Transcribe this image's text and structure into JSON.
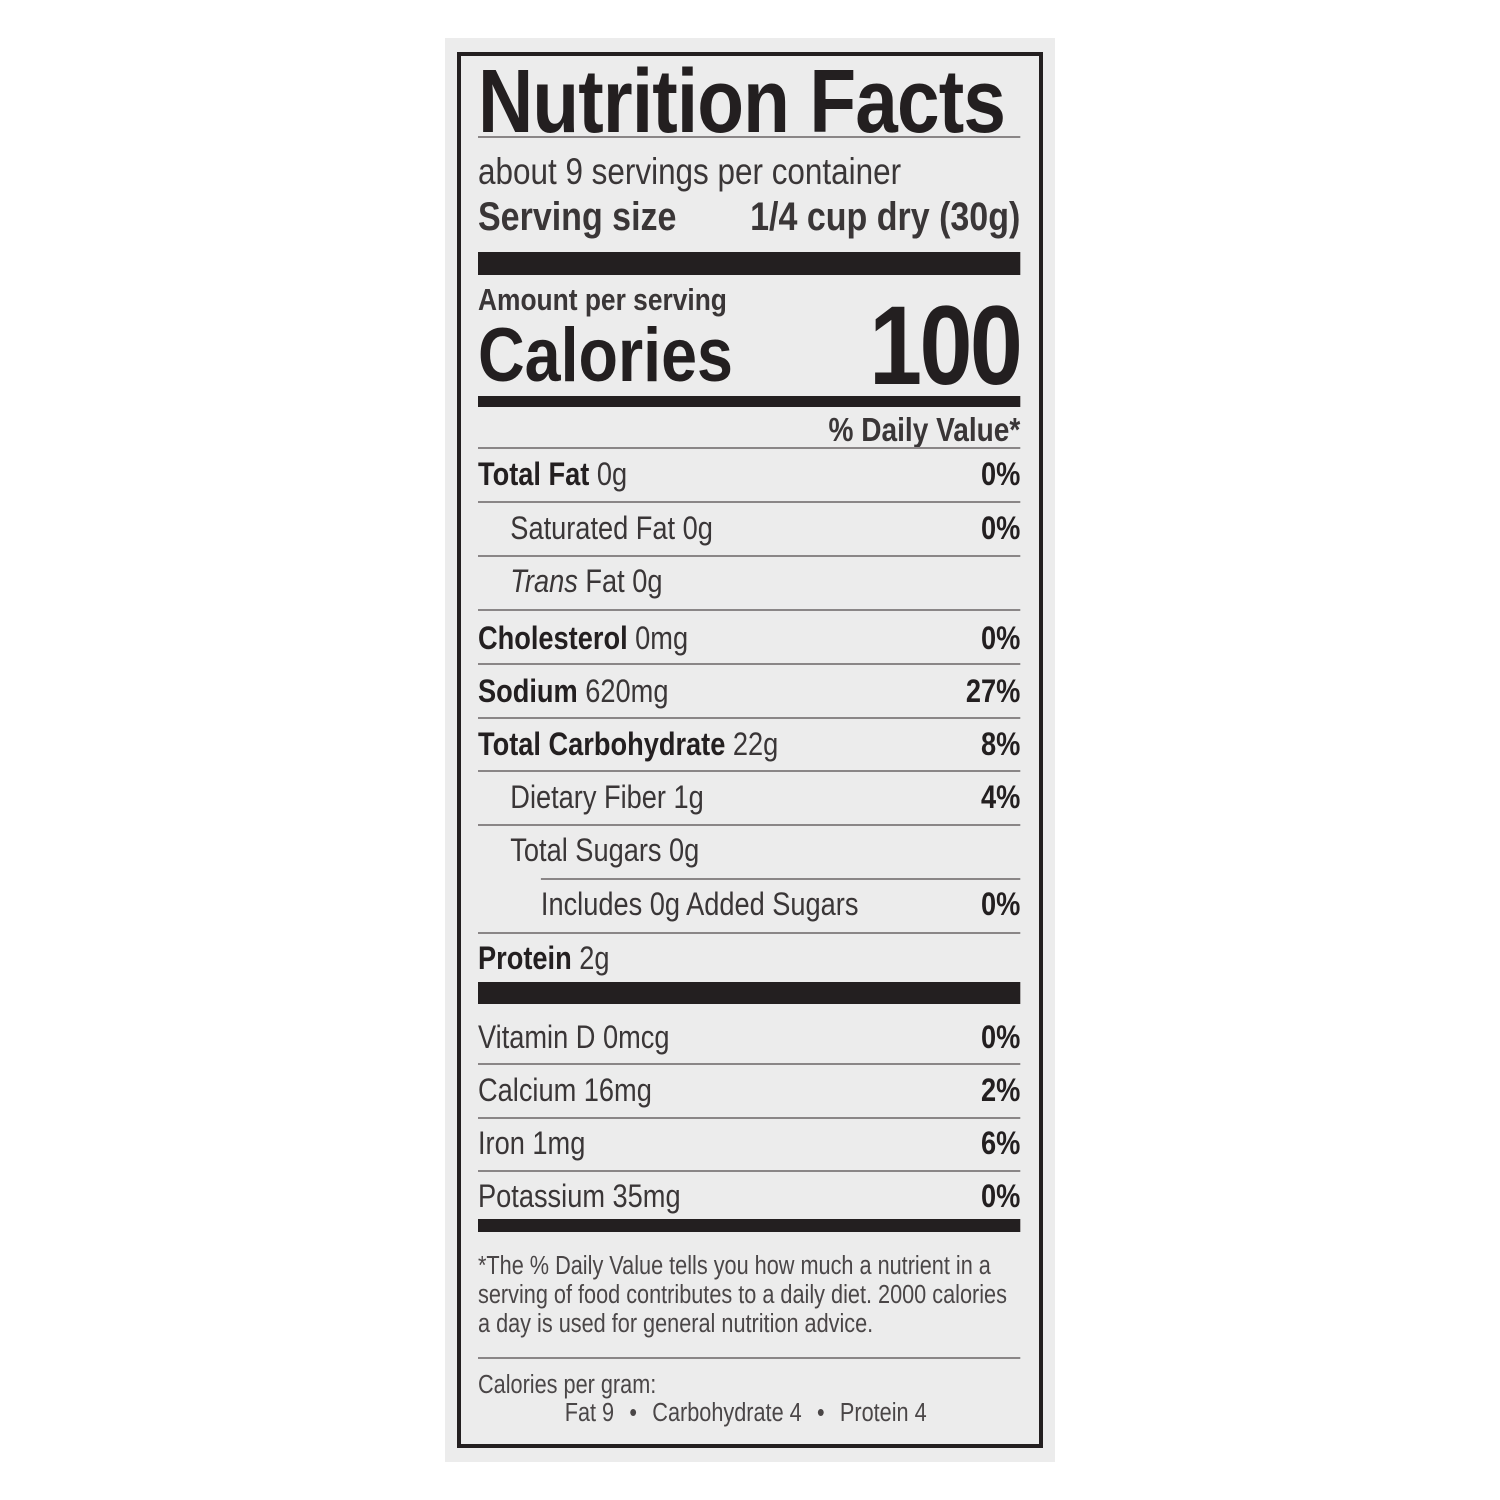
{
  "title": "Nutrition Facts",
  "servings_per_container": "about 9 servings per container",
  "serving_size": {
    "label": "Serving size",
    "value": "1/4 cup dry (30g)"
  },
  "amount_per_serving": "Amount per serving",
  "calories": {
    "label": "Calories",
    "value": "100"
  },
  "daily_value_header": "% Daily Value*",
  "nutrients": [
    {
      "name": "Total Fat",
      "amount": "0g",
      "dv": "0%"
    },
    {
      "name": "Saturated Fat",
      "amount": "0g",
      "dv": "0%"
    },
    {
      "name": "Trans",
      "suffix": "Fat",
      "amount": "0g",
      "dv": ""
    },
    {
      "name": "Cholesterol",
      "amount": "0mg",
      "dv": "0%"
    },
    {
      "name": "Sodium",
      "amount": "620mg",
      "dv": "27%"
    },
    {
      "name": "Total Carbohydrate",
      "amount": "22g",
      "dv": "8%"
    },
    {
      "name": "Dietary Fiber",
      "amount": "1g",
      "dv": "4%"
    },
    {
      "name": "Total Sugars",
      "amount": "0g",
      "dv": ""
    },
    {
      "name": "Includes 0g Added Sugars",
      "amount": "",
      "dv": "0%"
    },
    {
      "name": "Protein",
      "amount": "2g",
      "dv": ""
    }
  ],
  "micronutrients": [
    {
      "name": "Vitamin D",
      "amount": "0mcg",
      "dv": "0%"
    },
    {
      "name": "Calcium",
      "amount": "16mg",
      "dv": "2%"
    },
    {
      "name": "Iron",
      "amount": "1mg",
      "dv": "6%"
    },
    {
      "name": "Potassium",
      "amount": "35mg",
      "dv": "0%"
    }
  ],
  "footnote": "*The % Daily Value tells you how much a nutrient in a serving of food contributes to a daily diet. 2000 calories a day is used for general nutrition advice.",
  "calories_per_gram": {
    "label": "Calories per gram:",
    "fat": "Fat 9",
    "carbohydrate": "Carbohydrate 4",
    "protein": "Protein 4",
    "separator": "•"
  },
  "colors": {
    "ink": "#231f20",
    "panel": "#ececec"
  }
}
